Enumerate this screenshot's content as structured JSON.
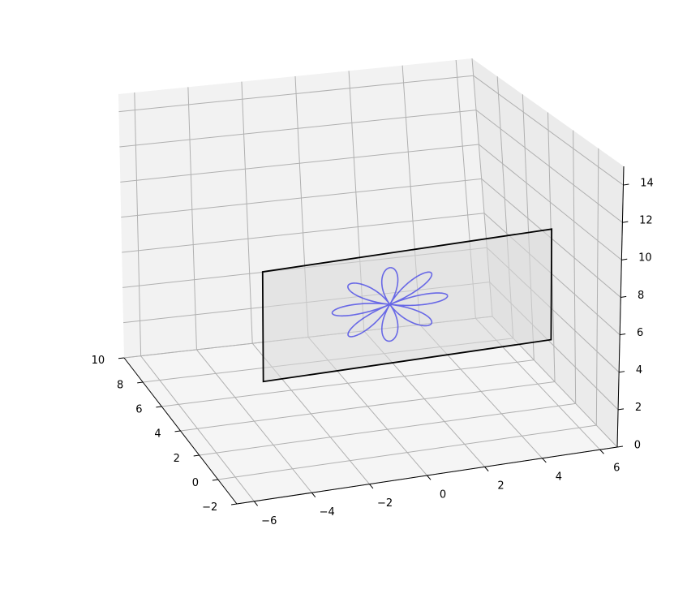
{
  "chart_data": {
    "type": "3d-line",
    "title": "",
    "xlabel": "",
    "ylabel": "",
    "zlabel": "",
    "axes_3d": {
      "x": {
        "lim": [
          -6.6,
          6.6
        ],
        "ticks": [
          -6,
          -4,
          -2,
          0,
          2,
          4,
          6
        ],
        "tick_labels": [
          "−6",
          "−4",
          "−2",
          "0",
          "2",
          "4",
          "6"
        ]
      },
      "y": {
        "lim": [
          -2,
          10
        ],
        "ticks": [
          -2,
          0,
          2,
          4,
          6,
          8,
          10
        ],
        "tick_labels": [
          "−2",
          "0",
          "2",
          "4",
          "6",
          "8",
          "10"
        ]
      },
      "z": {
        "lim": [
          0,
          15
        ],
        "ticks": [
          0,
          2,
          4,
          6,
          8,
          10,
          12,
          14
        ],
        "tick_labels": [
          "0",
          "2",
          "4",
          "6",
          "8",
          "10",
          "12",
          "14"
        ]
      },
      "grid": true,
      "pane_color": "#f2f2f2",
      "view": {
        "elev": 20,
        "azim": -20
      }
    },
    "plane": {
      "y": 0,
      "x_range": [
        -5,
        5
      ],
      "z_range": [
        5,
        11
      ],
      "face_color": "#d9d9d9",
      "edge_color": "#000000"
    },
    "series": [
      {
        "kind": "rose-curve",
        "equation": "r = 2 cos(4θ)",
        "petals": 8,
        "amplitude": 2,
        "k": 4,
        "center": {
          "x": -0.6,
          "y": 0,
          "z": 8.2
        },
        "plane": "xz",
        "color": "#5a5ae6"
      }
    ]
  }
}
